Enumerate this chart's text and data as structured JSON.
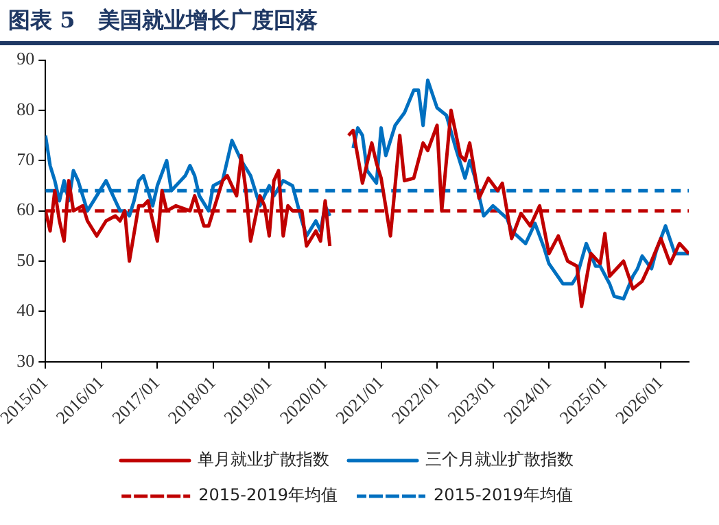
{
  "chart_data": {
    "type": "line",
    "title": "图表 5   美国就业增长广度回落",
    "xlim": [
      "2015-01",
      "2026-07"
    ],
    "ylim": [
      30,
      90
    ],
    "yticks": [
      30,
      40,
      50,
      60,
      70,
      80,
      90
    ],
    "xticks": [
      {
        "value": "2015-01",
        "label": "2015/01"
      },
      {
        "value": "2016-01",
        "label": "2016/01"
      },
      {
        "value": "2017-01",
        "label": "2017/01"
      },
      {
        "value": "2018-01",
        "label": "2018/01"
      },
      {
        "value": "2019-01",
        "label": "2019/01"
      },
      {
        "value": "2020-01",
        "label": "2020/01"
      },
      {
        "value": "2021-01",
        "label": "2021/01"
      },
      {
        "value": "2022-01",
        "label": "2022/01"
      },
      {
        "value": "2023-01",
        "label": "2023/01"
      },
      {
        "value": "2024-01",
        "label": "2024/01"
      },
      {
        "value": "2025-01",
        "label": "2025/01"
      },
      {
        "value": "2026-01",
        "label": "2026/01"
      }
    ],
    "grid": false,
    "legend": "bottom",
    "marker": "none",
    "line_style": "solid",
    "series": [
      {
        "name": "单月就业扩散指数",
        "color": "#c00000",
        "x": [
          "2015-01",
          "2015-02",
          "2015-03",
          "2015-04",
          "2015-05",
          "2015-06",
          "2015-07",
          "2015-09",
          "2015-10",
          "2015-12",
          "2016-02",
          "2016-04",
          "2016-05",
          "2016-06",
          "2016-07",
          "2016-09",
          "2016-10",
          "2016-11",
          "2017-01",
          "2017-02",
          "2017-03",
          "2017-05",
          "2017-08",
          "2017-09",
          "2017-11",
          "2017-12",
          "2018-01",
          "2018-03",
          "2018-04",
          "2018-06",
          "2018-07",
          "2018-08",
          "2018-09",
          "2018-11",
          "2018-12",
          "2019-01",
          "2019-02",
          "2019-03",
          "2019-04",
          "2019-05",
          "2019-06",
          "2019-08",
          "2019-09",
          "2019-11",
          "2019-12",
          "2020-01",
          "2020-02",
          "2020-04",
          "2020-05",
          "2020-06",
          "2020-07",
          "2020-09",
          "2020-11",
          "2020-12",
          "2021-01",
          "2021-03",
          "2021-05",
          "2021-06",
          "2021-08",
          "2021-10",
          "2021-11",
          "2022-01",
          "2022-02",
          "2022-04",
          "2022-06",
          "2022-07",
          "2022-08",
          "2022-10",
          "2022-12",
          "2023-02",
          "2023-03",
          "2023-05",
          "2023-07",
          "2023-09",
          "2023-11",
          "2024-01",
          "2024-03",
          "2024-05",
          "2024-07",
          "2024-08",
          "2024-10",
          "2024-12",
          "2025-01",
          "2025-02",
          "2025-05",
          "2025-07",
          "2025-09",
          "2025-11",
          "2026-01",
          "2026-03",
          "2026-05",
          "2026-07"
        ],
        "values": [
          60,
          56,
          64,
          58,
          54,
          66,
          60,
          61,
          58,
          55,
          58,
          59,
          58,
          60,
          50,
          61,
          61,
          62,
          54,
          64,
          60,
          61,
          60,
          63,
          57,
          57,
          60,
          66,
          67,
          63,
          71,
          64,
          54,
          63,
          61,
          55,
          66,
          68,
          55,
          61,
          60,
          60,
          53,
          56,
          54,
          62,
          53,
          null,
          null,
          75,
          76,
          65.5,
          73.5,
          69.5,
          66.5,
          55,
          75,
          66,
          66.5,
          73.5,
          72,
          77,
          60,
          80,
          71,
          70,
          73.5,
          62.5,
          66.5,
          64,
          65.5,
          54.5,
          59.5,
          57,
          61,
          51.5,
          55,
          50,
          49,
          41,
          51.5,
          49.5,
          55.5,
          47,
          50,
          44.5,
          46,
          50,
          54.5,
          49.5,
          53.5,
          51.5
        ]
      },
      {
        "name": "三个月就业扩散指数",
        "color": "#0070c0",
        "x": [
          "2015-01",
          "2015-02",
          "2015-03",
          "2015-04",
          "2015-05",
          "2015-06",
          "2015-07",
          "2015-08",
          "2015-10",
          "2015-12",
          "2016-02",
          "2016-04",
          "2016-05",
          "2016-06",
          "2016-07",
          "2016-08",
          "2016-09",
          "2016-10",
          "2016-12",
          "2017-01",
          "2017-03",
          "2017-04",
          "2017-06",
          "2017-07",
          "2017-08",
          "2017-09",
          "2017-10",
          "2017-12",
          "2018-01",
          "2018-03",
          "2018-05",
          "2018-07",
          "2018-09",
          "2018-10",
          "2018-11",
          "2019-01",
          "2019-02",
          "2019-04",
          "2019-06",
          "2019-08",
          "2019-09",
          "2019-11",
          "2019-12",
          "2020-01",
          "2020-02",
          "2020-04",
          "2020-07",
          "2020-08",
          "2020-09",
          "2020-10",
          "2020-12",
          "2021-01",
          "2021-02",
          "2021-04",
          "2021-06",
          "2021-08",
          "2021-09",
          "2021-10",
          "2021-11",
          "2022-01",
          "2022-03",
          "2022-05",
          "2022-07",
          "2022-08",
          "2022-09",
          "2022-11",
          "2023-01",
          "2023-04",
          "2023-05",
          "2023-08",
          "2023-10",
          "2023-12",
          "2024-01",
          "2024-04",
          "2024-06",
          "2024-07",
          "2024-09",
          "2024-11",
          "2024-12",
          "2025-02",
          "2025-03",
          "2025-05",
          "2025-07",
          "2025-08",
          "2025-09",
          "2025-11",
          "2025-12",
          "2026-02",
          "2026-04",
          "2026-06",
          "2026-07"
        ],
        "values": [
          75,
          69,
          66,
          62,
          66,
          62,
          68,
          66,
          60,
          63,
          66,
          62,
          60,
          60,
          59,
          62,
          66,
          67,
          61,
          65,
          70,
          64,
          66,
          67,
          69,
          67,
          63,
          60,
          65,
          66,
          74,
          70,
          67,
          64,
          61,
          65,
          63,
          66,
          65,
          58,
          55,
          58,
          56,
          61,
          59,
          null,
          72.5,
          76.5,
          75,
          68,
          65.5,
          76.5,
          71,
          77,
          79.5,
          84,
          84,
          77,
          86,
          80.5,
          79,
          72.5,
          66.5,
          70,
          67,
          59,
          61,
          58.5,
          56,
          53.5,
          57.5,
          52.5,
          49.5,
          45.5,
          45.5,
          47,
          53.5,
          49,
          49,
          45.5,
          43,
          42.5,
          47,
          48.5,
          51,
          48.5,
          52,
          57,
          51.5,
          51.5,
          51.5
        ]
      }
    ],
    "ref_lines": [
      {
        "axis": "y",
        "value": 60,
        "label": "2015-2019年均值",
        "color": "#c00000",
        "line_style": "dashed"
      },
      {
        "axis": "y",
        "value": 64,
        "label": "2015-2019年均值",
        "color": "#0070c0",
        "line_style": "dashed"
      }
    ]
  }
}
